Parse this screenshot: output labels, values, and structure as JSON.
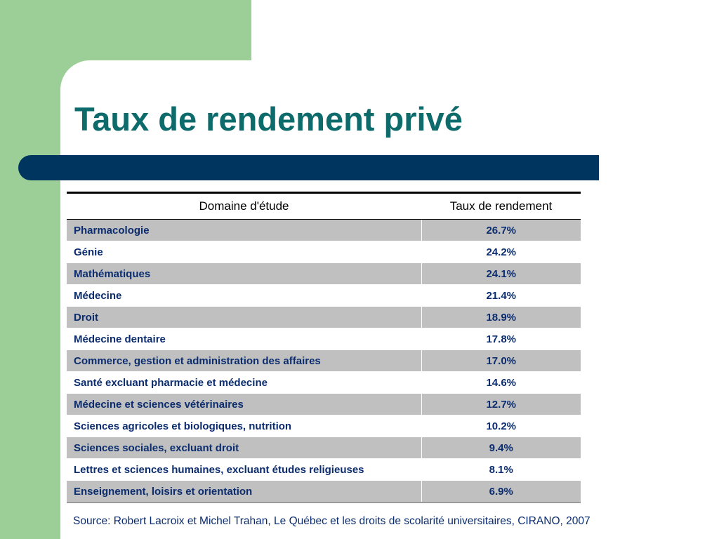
{
  "slide": {
    "title": "Taux de rendement privé",
    "source": "Source: Robert Lacroix et Michel Trahan, Le Québec et les droits de scolarité universitaires, CIRANO, 2007"
  },
  "theme": {
    "green": "#9cce98",
    "navy": "#00355f",
    "title_color": "#0e6b6b",
    "text_color": "#0b2c6e",
    "row_shade": "#c0c0c0"
  },
  "table": {
    "headers": [
      "Domaine d'étude",
      "Taux de rendement"
    ],
    "rows": [
      {
        "domain": "Pharmacologie",
        "rate": "26.7%"
      },
      {
        "domain": "Génie",
        "rate": "24.2%"
      },
      {
        "domain": "Mathématiques",
        "rate": "24.1%"
      },
      {
        "domain": "Médecine",
        "rate": "21.4%"
      },
      {
        "domain": "Droit",
        "rate": "18.9%"
      },
      {
        "domain": "Médecine dentaire",
        "rate": "17.8%"
      },
      {
        "domain": "Commerce, gestion et administration des affaires",
        "rate": "17.0%"
      },
      {
        "domain": "Santé excluant pharmacie et médecine",
        "rate": "14.6%"
      },
      {
        "domain": "Médecine et sciences vétérinaires",
        "rate": "12.7%"
      },
      {
        "domain": "Sciences agricoles et biologiques, nutrition",
        "rate": "10.2%"
      },
      {
        "domain": "Sciences sociales, excluant droit",
        "rate": "9.4%"
      },
      {
        "domain": "Lettres et sciences humaines, excluant études religieuses",
        "rate": "8.1%"
      },
      {
        "domain": "Enseignement, loisirs et orientation",
        "rate": "6.9%"
      }
    ]
  }
}
